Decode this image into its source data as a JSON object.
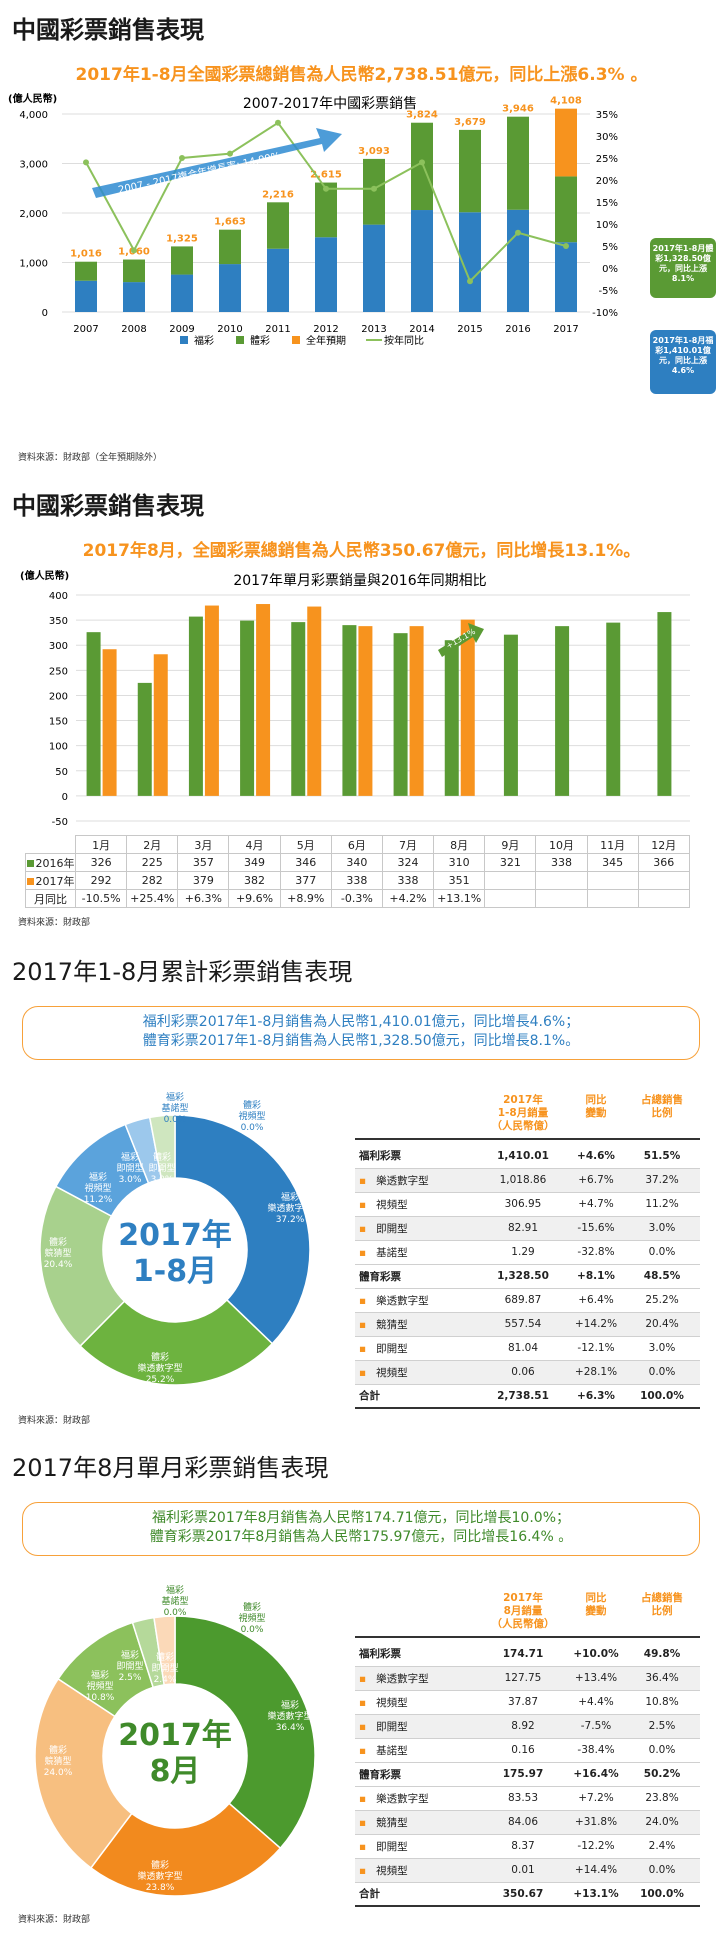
{
  "s1": {
    "title": "中國彩票銷售表現",
    "headline": "2017年1-8月全國彩票總銷售為人民幣2,738.51億元，同比上漲6.3% 。",
    "source": "資料來源：財政部（全年預期除外）"
  },
  "s2": {
    "title": "中國彩票銷售表現",
    "headline": "2017年8月，全國彩票總銷售為人民幣350.67億元，同比增長13.1%。",
    "source": "資料來源：財政部"
  },
  "s3": {
    "title": "2017年1-8月累計彩票銷售表現",
    "box_line1": "福利彩票2017年1-8月銷售為人民幣1,410.01億元，同比增長4.6%；",
    "box_line2": "體育彩票2017年1-8月銷售為人民幣1,328.50億元，同比增長8.1%。",
    "center1": "2017年",
    "center2": "1-8月",
    "source": "資料來源：財政部"
  },
  "s4": {
    "title": "2017年8月單月彩票銷售表現",
    "box_line1": "福利彩票2017年8月銷售為人民幣174.71億元，同比增長10.0%；",
    "box_line2": "體育彩票2017年8月銷售為人民幣175.97億元，同比增長16.4% 。",
    "center1": "2017年",
    "center2": "8月",
    "source": "資料來源：財政部"
  },
  "colors": {
    "blue": "#2e7fc1",
    "green": "#5a9a34",
    "orange": "#f7931e",
    "light_green": "#8cc15c"
  },
  "chart_data": [
    {
      "type": "bar",
      "title": "2007-2017年中國彩票銷售",
      "ylabel": "(億人民幣)",
      "ylim": [
        0,
        4000
      ],
      "y2lim": [
        -10,
        35
      ],
      "categories": [
        "2007",
        "2008",
        "2009",
        "2010",
        "2011",
        "2012",
        "2013",
        "2014",
        "2015",
        "2016",
        "2017"
      ],
      "series": [
        {
          "name": "福彩",
          "values": [
            632,
            604,
            756,
            968,
            1278,
            1510,
            1765,
            2060,
            2015,
            2065,
            1410
          ]
        },
        {
          "name": "體彩",
          "values": [
            384,
            456,
            569,
            695,
            938,
            1105,
            1328,
            1764,
            1664,
            1881,
            1329
          ]
        },
        {
          "name": "全年預期",
          "values": [
            0,
            0,
            0,
            0,
            0,
            0,
            0,
            0,
            0,
            0,
            1369
          ]
        },
        {
          "name": "按年同比",
          "axis": "right",
          "values": [
            24,
            4,
            25,
            26,
            33,
            18,
            18,
            24,
            -3,
            8,
            5
          ]
        }
      ],
      "totals": [
        "1,016",
        "1,060",
        "1,325",
        "1,663",
        "2,216",
        "2,615",
        "3,093",
        "3,824",
        "3,679",
        "3,946",
        "4,108"
      ],
      "yticks": [
        "0",
        "1,000",
        "2,000",
        "3,000",
        "4,000"
      ],
      "y2ticks": [
        "-10%",
        "-5%",
        "0%",
        "5%",
        "10%",
        "15%",
        "20%",
        "25%",
        "30%",
        "35%"
      ],
      "annotation": "2007 - 2017複合年增長率: 14.99%",
      "callout_green": "2017年1-8月體彩1,328.50億元，同比上漲8.1%",
      "callout_blue": "2017年1-8月福彩1,410.01億元，同比上漲4.6%",
      "legend": "bottom"
    },
    {
      "type": "bar",
      "title": "2017年單月彩票銷量與2016年同期相比",
      "ylabel": "(億人民幣)",
      "ylim": [
        -50,
        400
      ],
      "categories": [
        "1月",
        "2月",
        "3月",
        "4月",
        "5月",
        "6月",
        "7月",
        "8月",
        "9月",
        "10月",
        "11月",
        "12月"
      ],
      "series": [
        {
          "name": "2016年",
          "values": [
            326,
            225,
            357,
            349,
            346,
            340,
            324,
            310,
            321,
            338,
            345,
            366
          ]
        },
        {
          "name": "2017年",
          "values": [
            292,
            282,
            379,
            382,
            377,
            338,
            338,
            351,
            null,
            null,
            null,
            null
          ]
        }
      ],
      "row_2016": [
        "326",
        "225",
        "357",
        "349",
        "346",
        "340",
        "324",
        "310",
        "321",
        "338",
        "345",
        "366"
      ],
      "row_2017": [
        "292",
        "282",
        "379",
        "382",
        "377",
        "338",
        "338",
        "351",
        "",
        "",
        "",
        ""
      ],
      "row_yoy": [
        "-10.5%",
        "+25.4%",
        "+6.3%",
        "+9.6%",
        "+8.9%",
        "-0.3%",
        "+4.2%",
        "+13.1%",
        "",
        "",
        "",
        ""
      ],
      "yoy_label": "月同比",
      "yticks": [
        "-50",
        "0",
        "50",
        "100",
        "150",
        "200",
        "250",
        "300",
        "350",
        "400"
      ],
      "annotation": "+13.1%"
    },
    {
      "type": "pie",
      "slices": [
        {
          "name": "體彩 視頻型",
          "pct": "0.0%",
          "value": 0.0
        },
        {
          "name": "福彩 樂透數字型",
          "pct": "37.2%",
          "value": 37.2
        },
        {
          "name": "體彩 樂透數字型",
          "pct": "25.2%",
          "value": 25.2
        },
        {
          "name": "體彩 競猜型",
          "pct": "20.4%",
          "value": 20.4
        },
        {
          "name": "福彩 視頻型",
          "pct": "11.2%",
          "value": 11.2
        },
        {
          "name": "福彩 即開型",
          "pct": "3.0%",
          "value": 3.0
        },
        {
          "name": "體彩 即開型",
          "pct": "3.0%",
          "value": 3.0
        },
        {
          "name": "福彩 基諾型",
          "pct": "0.0%",
          "value": 0.0
        }
      ]
    },
    {
      "type": "pie",
      "slices": [
        {
          "name": "體彩 視頻型",
          "pct": "0.0%",
          "value": 0.0
        },
        {
          "name": "福彩 樂透數字型",
          "pct": "36.4%",
          "value": 36.4
        },
        {
          "name": "體彩 樂透數字型",
          "pct": "23.8%",
          "value": 23.8
        },
        {
          "name": "體彩 競猜型",
          "pct": "24.0%",
          "value": 24.0
        },
        {
          "name": "福彩 視頻型",
          "pct": "10.8%",
          "value": 10.8
        },
        {
          "name": "福彩 即開型",
          "pct": "2.5%",
          "value": 2.5
        },
        {
          "name": "體彩 即開型",
          "pct": "2.4%",
          "value": 2.4
        },
        {
          "name": "福彩 基諾型",
          "pct": "0.0%",
          "value": 0.0
        }
      ]
    }
  ],
  "table1": {
    "head": [
      "2017年\n1-8月銷量\n（人民幣億）",
      "同比\n變動",
      "占總銷售\n比例"
    ],
    "rows": [
      {
        "kind": "grp",
        "label": "福利彩票",
        "v": "1,410.01",
        "chg": "+4.6%",
        "pct": "51.5%"
      },
      {
        "kind": "sub",
        "label": "樂透數字型",
        "v": "1,018.86",
        "chg": "+6.7%",
        "pct": "37.2%"
      },
      {
        "kind": "sub",
        "label": "視頻型",
        "v": "306.95",
        "chg": "+4.7%",
        "pct": "11.2%"
      },
      {
        "kind": "sub",
        "label": "即開型",
        "v": "82.91",
        "chg": "-15.6%",
        "pct": "3.0%"
      },
      {
        "kind": "sub",
        "label": "基諾型",
        "v": "1.29",
        "chg": "-32.8%",
        "pct": "0.0%"
      },
      {
        "kind": "grp",
        "label": "體育彩票",
        "v": "1,328.50",
        "chg": "+8.1%",
        "pct": "48.5%"
      },
      {
        "kind": "sub",
        "label": "樂透數字型",
        "v": "689.87",
        "chg": "+6.4%",
        "pct": "25.2%"
      },
      {
        "kind": "sub",
        "label": "競猜型",
        "v": "557.54",
        "chg": "+14.2%",
        "pct": "20.4%"
      },
      {
        "kind": "sub",
        "label": "即開型",
        "v": "81.04",
        "chg": "-12.1%",
        "pct": "3.0%"
      },
      {
        "kind": "sub",
        "label": "視頻型",
        "v": "0.06",
        "chg": "+28.1%",
        "pct": "0.0%"
      },
      {
        "kind": "tot",
        "label": "合計",
        "v": "2,738.51",
        "chg": "+6.3%",
        "pct": "100.0%"
      }
    ]
  },
  "table2": {
    "head": [
      "2017年\n8月銷量\n（人民幣億）",
      "同比\n變動",
      "占總銷售\n比例"
    ],
    "rows": [
      {
        "kind": "grp",
        "label": "福利彩票",
        "v": "174.71",
        "chg": "+10.0%",
        "pct": "49.8%"
      },
      {
        "kind": "sub",
        "label": "樂透數字型",
        "v": "127.75",
        "chg": "+13.4%",
        "pct": "36.4%"
      },
      {
        "kind": "sub",
        "label": "視頻型",
        "v": "37.87",
        "chg": "+4.4%",
        "pct": "10.8%"
      },
      {
        "kind": "sub",
        "label": "即開型",
        "v": "8.92",
        "chg": "-7.5%",
        "pct": "2.5%"
      },
      {
        "kind": "sub",
        "label": "基諾型",
        "v": "0.16",
        "chg": "-38.4%",
        "pct": "0.0%"
      },
      {
        "kind": "grp",
        "label": "體育彩票",
        "v": "175.97",
        "chg": "+16.4%",
        "pct": "50.2%"
      },
      {
        "kind": "sub",
        "label": "樂透數字型",
        "v": "83.53",
        "chg": "+7.2%",
        "pct": "23.8%"
      },
      {
        "kind": "sub",
        "label": "競猜型",
        "v": "84.06",
        "chg": "+31.8%",
        "pct": "24.0%"
      },
      {
        "kind": "sub",
        "label": "即開型",
        "v": "8.37",
        "chg": "-12.2%",
        "pct": "2.4%"
      },
      {
        "kind": "sub",
        "label": "視頻型",
        "v": "0.01",
        "chg": "+14.4%",
        "pct": "0.0%"
      },
      {
        "kind": "tot",
        "label": "合計",
        "v": "350.67",
        "chg": "+13.1%",
        "pct": "100.0%"
      }
    ]
  }
}
